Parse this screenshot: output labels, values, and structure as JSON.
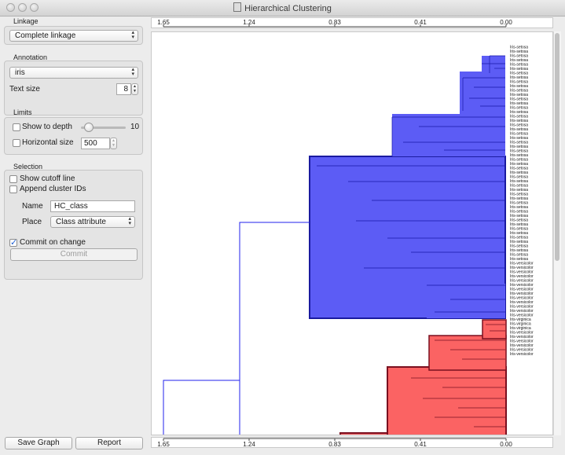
{
  "window": {
    "title": "Hierarchical Clustering"
  },
  "sidebar": {
    "linkage": {
      "label": "Linkage",
      "value": "Complete linkage"
    },
    "annotation": {
      "label": "Annotation",
      "value": "iris",
      "text_size_label": "Text size",
      "text_size": "8"
    },
    "limits": {
      "label": "Limits",
      "show_depth_label": "Show to depth",
      "depth_value": "10",
      "depth_level_fraction": 0.17,
      "horizontal_size_label": "Horizontal size",
      "horizontal_size": "500"
    },
    "selection": {
      "label": "Selection",
      "show_cutoff_label": "Show cutoff line",
      "append_ids_label": "Append cluster IDs",
      "name_label": "Name",
      "name_value": "HC_class",
      "place_label": "Place",
      "place_value": "Class attribute",
      "commit_on_change_label": "Commit on change",
      "commit_label": "Commit"
    },
    "buttons": {
      "save_graph": "Save Graph",
      "report": "Report"
    }
  },
  "axis": {
    "ticks": [
      "1.65",
      "1.24",
      "0.83",
      "0.41",
      "0.00"
    ]
  },
  "colors": {
    "cluster_blue": "#5c5cf5",
    "cluster_red": "#fb6363",
    "link_blue": "#2222ee",
    "link_dark_red": "#7a1020"
  },
  "dendrogram_labels": [
    "Iris-setosa",
    "Iris-setosa",
    "Iris-setosa",
    "Iris-setosa",
    "Iris-setosa",
    "Iris-setosa",
    "Iris-setosa",
    "Iris-setosa",
    "Iris-setosa",
    "Iris-setosa",
    "Iris-setosa",
    "Iris-setosa",
    "Iris-setosa",
    "Iris-setosa",
    "Iris-setosa",
    "Iris-setosa",
    "Iris-setosa",
    "Iris-setosa",
    "Iris-setosa",
    "Iris-setosa",
    "Iris-setosa",
    "Iris-setosa",
    "Iris-setosa",
    "Iris-setosa",
    "Iris-setosa",
    "Iris-setosa",
    "Iris-setosa",
    "Iris-setosa",
    "Iris-setosa",
    "Iris-setosa",
    "Iris-setosa",
    "Iris-setosa",
    "Iris-setosa",
    "Iris-setosa",
    "Iris-setosa",
    "Iris-setosa",
    "Iris-setosa",
    "Iris-setosa",
    "Iris-setosa",
    "Iris-setosa",
    "Iris-setosa",
    "Iris-setosa",
    "Iris-setosa",
    "Iris-setosa",
    "Iris-setosa",
    "Iris-setosa",
    "Iris-setosa",
    "Iris-setosa",
    "Iris-setosa",
    "Iris-setosa",
    "Iris-versicolor",
    "Iris-versicolor",
    "Iris-versicolor",
    "Iris-versicolor",
    "Iris-versicolor",
    "Iris-versicolor",
    "Iris-versicolor",
    "Iris-versicolor",
    "Iris-versicolor",
    "Iris-versicolor",
    "Iris-versicolor",
    "Iris-versicolor",
    "Iris-versicolor",
    "Iris-virginica",
    "Iris-virginica",
    "Iris-virginica",
    "Iris-versicolor",
    "Iris-versicolor",
    "Iris-versicolor",
    "Iris-versicolor",
    "Iris-versicolor",
    "Iris-versicolor"
  ]
}
